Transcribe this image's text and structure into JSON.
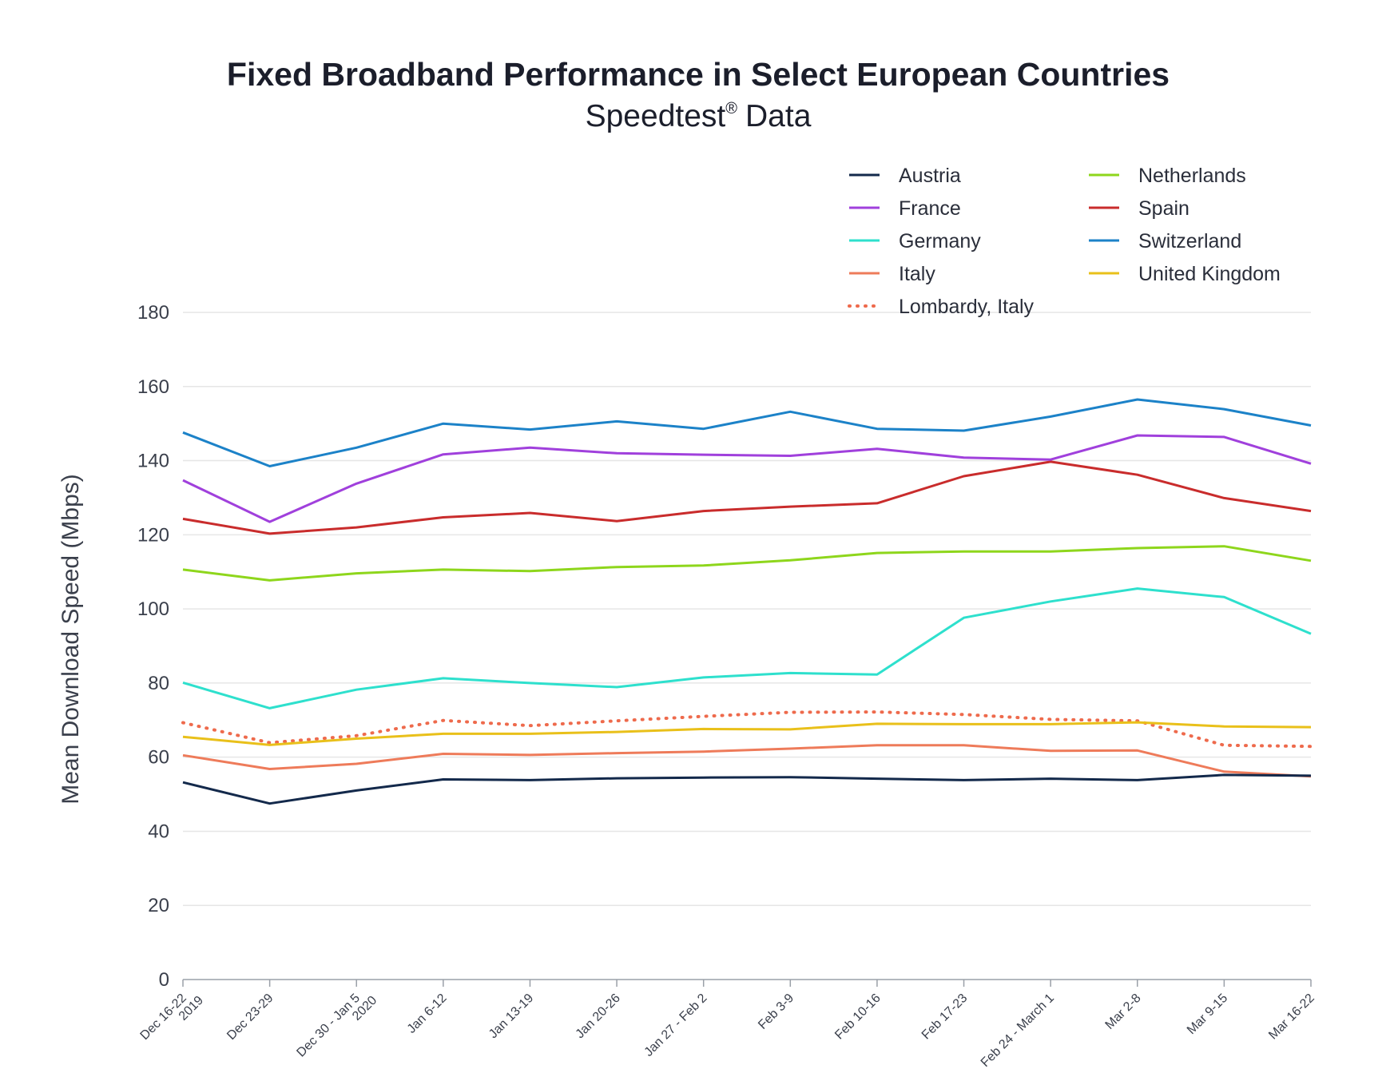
{
  "chart_data": {
    "type": "line",
    "title": "Fixed Broadband Performance in Select European Countries",
    "subtitle": "Speedtest",
    "subtitle_mark": "®",
    "subtitle_suffix": "Data",
    "xlabel": "",
    "ylabel": "Mean Download Speed (Mbps)",
    "ylim": [
      0,
      180
    ],
    "yticks": [
      0,
      20,
      40,
      60,
      80,
      100,
      120,
      140,
      160,
      180
    ],
    "grid": true,
    "legend_position": "top-right",
    "categories": [
      [
        "Dec 16-22",
        "2019"
      ],
      [
        "Dec 23-29"
      ],
      [
        "Dec 30 - Jan 5",
        "2020"
      ],
      [
        "Jan 6-12"
      ],
      [
        "Jan 13-19"
      ],
      [
        "Jan 20-26"
      ],
      [
        "Jan 27 - Feb 2"
      ],
      [
        "Feb 3-9"
      ],
      [
        "Feb 10-16"
      ],
      [
        "Feb 17-23"
      ],
      [
        "Feb 24 - March 1"
      ],
      [
        "Mar 2-8"
      ],
      [
        "Mar 9-15"
      ],
      [
        "Mar 16-22"
      ]
    ],
    "series": [
      {
        "name": "Austria",
        "color": "#13294b",
        "style": "solid",
        "values": [
          53.2,
          47.5,
          51.0,
          54.0,
          53.8,
          54.3,
          54.5,
          54.6,
          54.2,
          53.8,
          54.2,
          53.8,
          55.2,
          55.0
        ]
      },
      {
        "name": "France",
        "color": "#a040dc",
        "style": "solid",
        "values": [
          134.7,
          123.5,
          133.8,
          141.7,
          143.5,
          142.0,
          141.6,
          141.3,
          143.2,
          140.8,
          140.3,
          146.8,
          146.4,
          139.2
        ]
      },
      {
        "name": "Germany",
        "color": "#2ee0cd",
        "style": "solid",
        "values": [
          80.1,
          73.2,
          78.2,
          81.3,
          80.0,
          78.9,
          81.5,
          82.7,
          82.3,
          97.6,
          102.0,
          105.5,
          103.2,
          93.3
        ]
      },
      {
        "name": "Italy",
        "color": "#ee7b5a",
        "style": "solid",
        "values": [
          60.5,
          56.8,
          58.2,
          60.9,
          60.6,
          61.1,
          61.5,
          62.3,
          63.2,
          63.2,
          61.7,
          61.8,
          56.1,
          54.8
        ]
      },
      {
        "name": "Lombardy, Italy",
        "color": "#ee6a4c",
        "style": "dotted",
        "values": [
          69.3,
          63.9,
          65.8,
          69.9,
          68.5,
          69.8,
          71.0,
          72.1,
          72.2,
          71.5,
          70.2,
          69.8,
          63.2,
          62.9
        ]
      },
      {
        "name": "Netherlands",
        "color": "#8ed61c",
        "style": "solid",
        "values": [
          110.6,
          107.7,
          109.6,
          110.6,
          110.2,
          111.3,
          111.7,
          113.1,
          115.1,
          115.5,
          115.5,
          116.4,
          116.9,
          113.0
        ]
      },
      {
        "name": "Spain",
        "color": "#c92c2c",
        "style": "solid",
        "values": [
          124.3,
          120.3,
          122.0,
          124.7,
          125.9,
          123.7,
          126.4,
          127.6,
          128.5,
          135.8,
          139.7,
          136.2,
          129.9,
          126.4
        ]
      },
      {
        "name": "Switzerland",
        "color": "#1c82c8",
        "style": "solid",
        "values": [
          147.6,
          138.5,
          143.5,
          150.0,
          148.4,
          150.6,
          148.6,
          153.2,
          148.6,
          148.1,
          151.9,
          156.5,
          153.9,
          149.5
        ]
      },
      {
        "name": "United Kingdom",
        "color": "#e9c01a",
        "style": "solid",
        "values": [
          65.5,
          63.3,
          65.0,
          66.3,
          66.3,
          66.8,
          67.6,
          67.5,
          69.0,
          68.9,
          68.9,
          69.4,
          68.3,
          68.1
        ]
      }
    ]
  }
}
